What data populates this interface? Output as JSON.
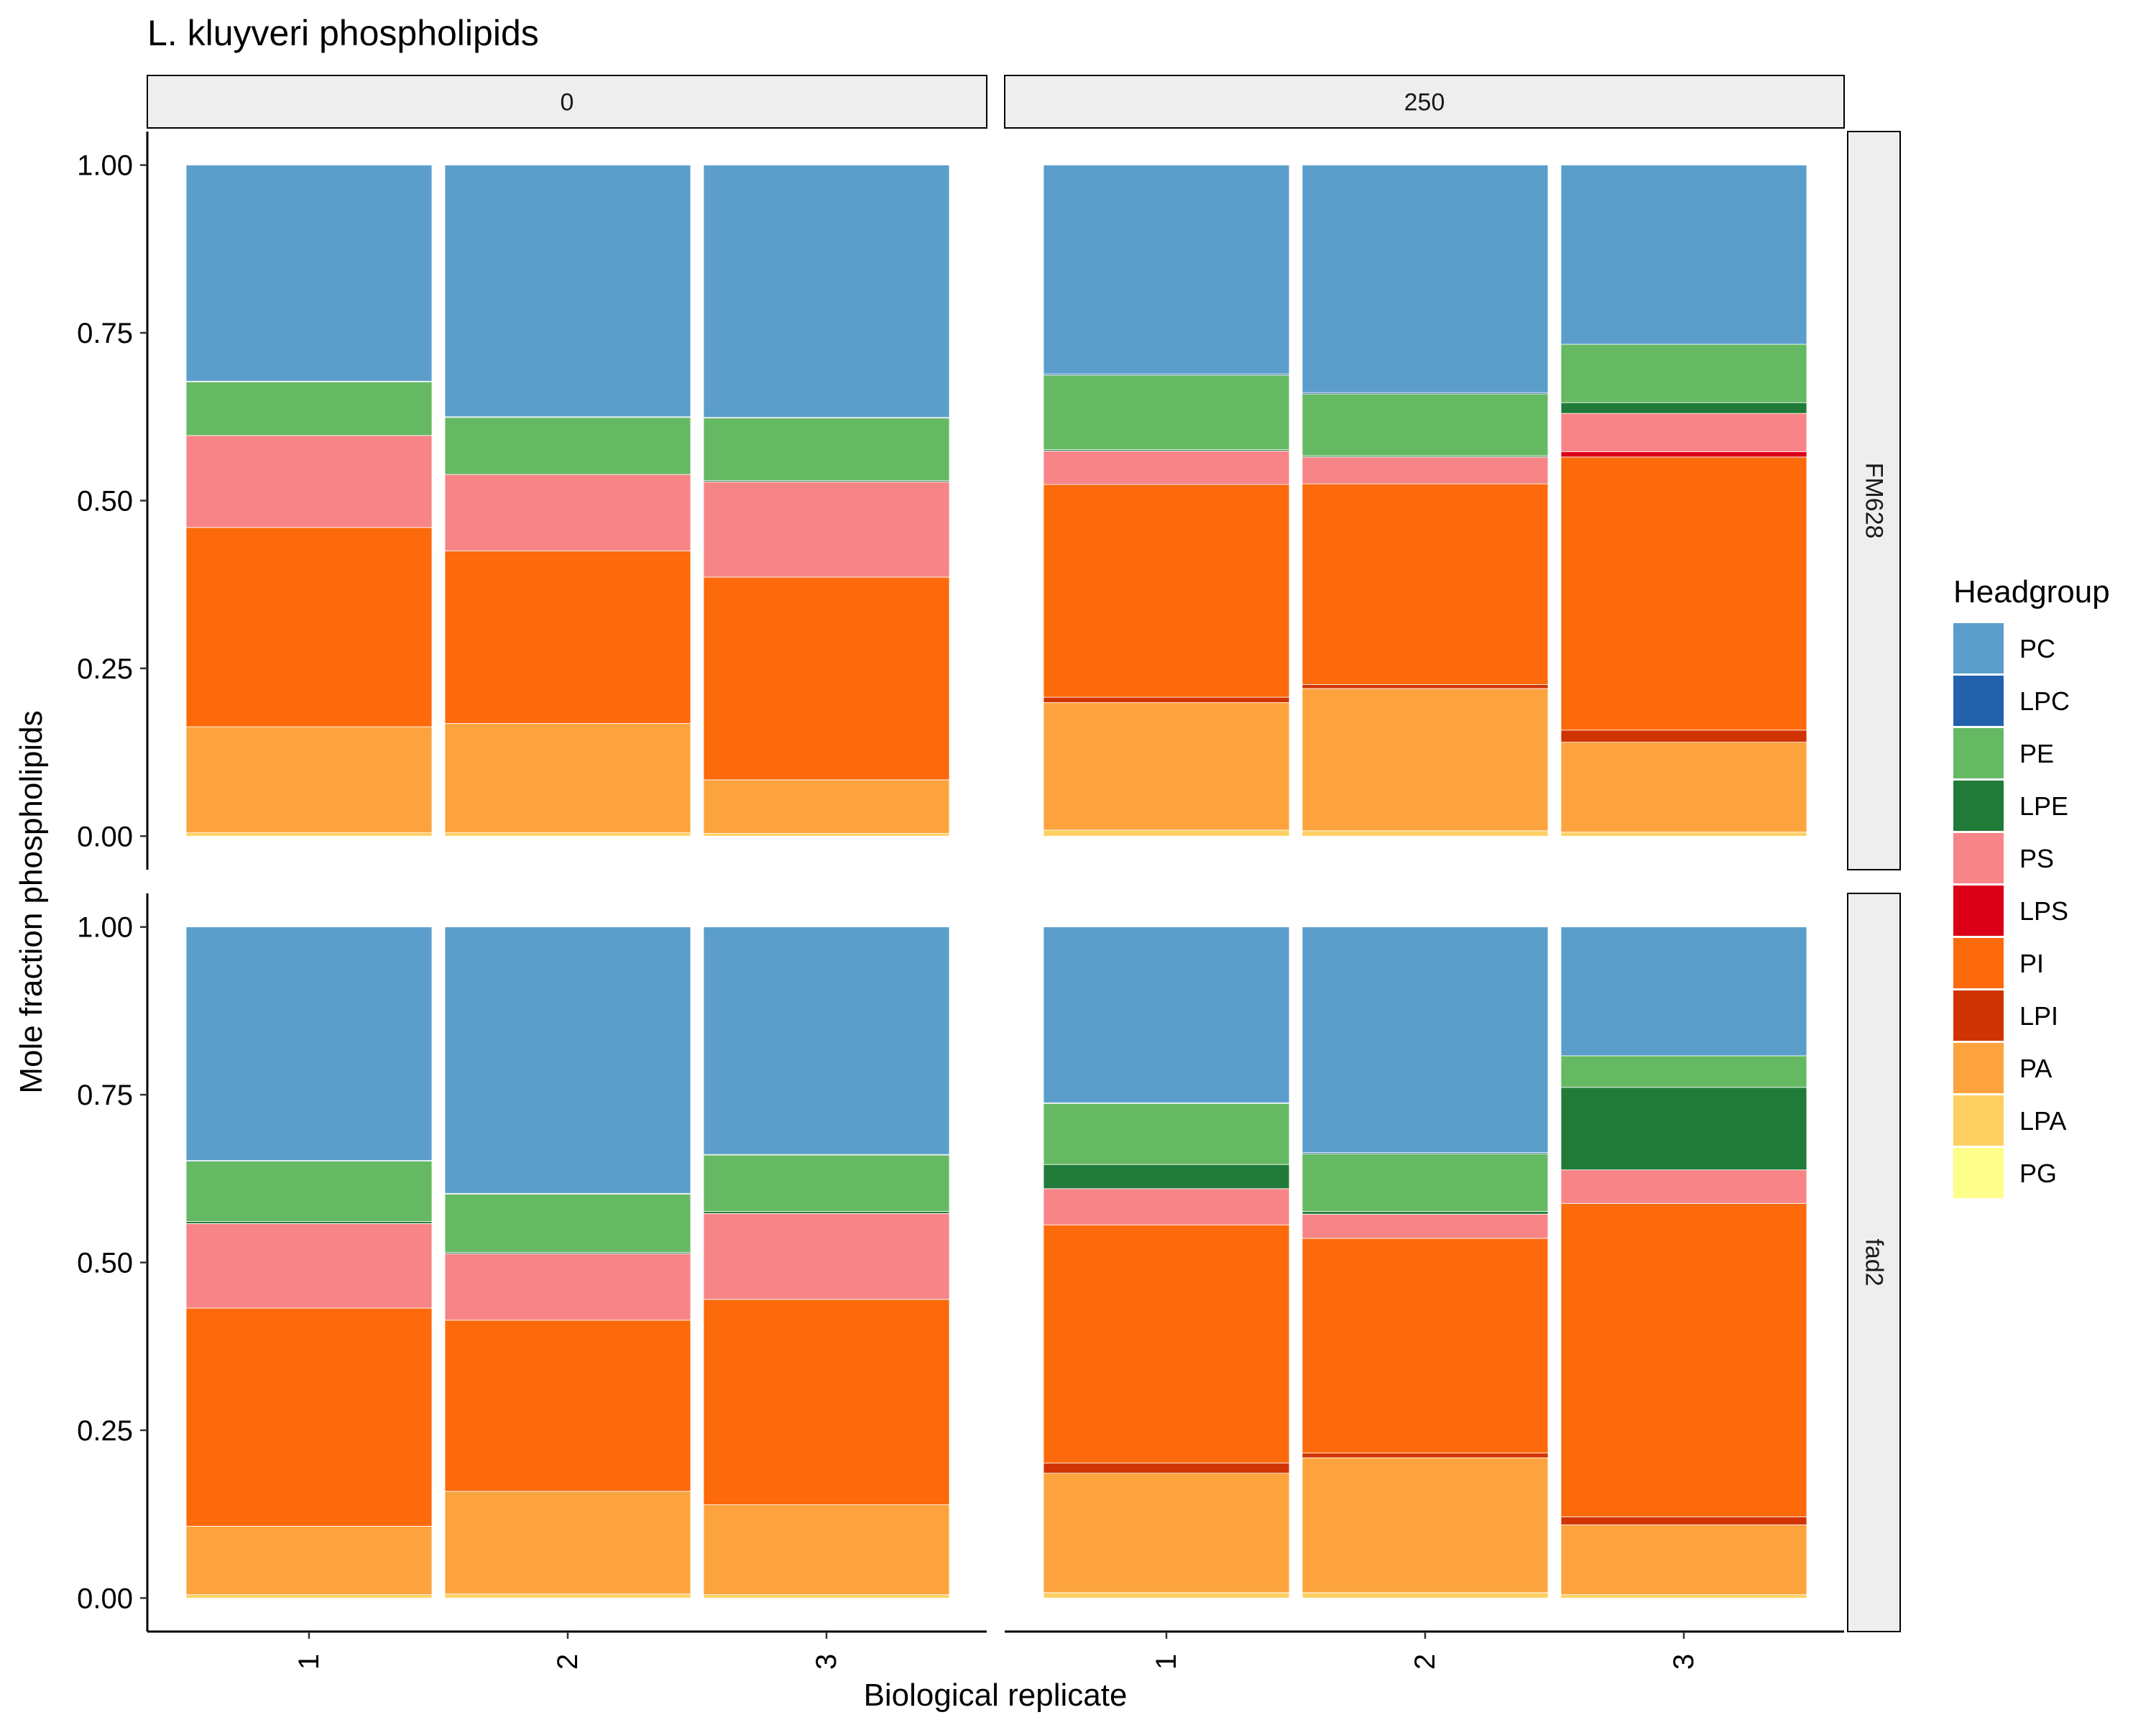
{
  "chart_data": {
    "type": "bar",
    "stacked": true,
    "title": "L. kluyveri phospholipids",
    "xlabel": "Biological replicate",
    "ylabel": "Mole fraction phospholipids",
    "ylim": [
      0,
      1
    ],
    "y_ticks": [
      "0.00",
      "0.25",
      "0.50",
      "0.75",
      "1.00"
    ],
    "x_tick_labels": [
      "1",
      "2",
      "3"
    ],
    "facet_columns": [
      "0",
      "250"
    ],
    "facet_rows": [
      "FM628",
      "fad2"
    ],
    "legend_title": "Headgroup",
    "legend_position": "right",
    "grid": false,
    "series": [
      {
        "name": "PC",
        "color": "#5b9ecb"
      },
      {
        "name": "LPC",
        "color": "#2262ad"
      },
      {
        "name": "PE",
        "color": "#66b963"
      },
      {
        "name": "LPE",
        "color": "#207b38"
      },
      {
        "name": "PS",
        "color": "#f78587"
      },
      {
        "name": "LPS",
        "color": "#db0018"
      },
      {
        "name": "PI",
        "color": "#fc6a0b"
      },
      {
        "name": "LPI",
        "color": "#d13404"
      },
      {
        "name": "PA",
        "color": "#fca33e"
      },
      {
        "name": "LPA",
        "color": "#fed061"
      },
      {
        "name": "PG",
        "color": "#fefe8b"
      }
    ],
    "stack_order_bottom_to_top": [
      "PG",
      "LPA",
      "PA",
      "LPI",
      "PI",
      "LPS",
      "PS",
      "LPE",
      "PE",
      "LPC",
      "PC"
    ],
    "panels": [
      {
        "row": "FM628",
        "col": "0",
        "bars": [
          {
            "replicate": "1",
            "values": {
              "PG": 0.0,
              "LPA": 0.005,
              "PA": 0.158,
              "LPI": 0.0,
              "PI": 0.297,
              "LPS": 0.0,
              "PS": 0.137,
              "LPE": 0.0,
              "PE": 0.08,
              "LPC": 0.001,
              "PC": 0.322
            }
          },
          {
            "replicate": "2",
            "values": {
              "PG": 0.0,
              "LPA": 0.005,
              "PA": 0.163,
              "LPI": 0.0,
              "PI": 0.257,
              "LPS": 0.0,
              "PS": 0.114,
              "LPE": 0.0,
              "PE": 0.085,
              "LPC": 0.001,
              "PC": 0.375
            }
          },
          {
            "replicate": "3",
            "values": {
              "PG": 0.0,
              "LPA": 0.004,
              "PA": 0.08,
              "LPI": 0.0,
              "PI": 0.302,
              "LPS": 0.0,
              "PS": 0.142,
              "LPE": 0.002,
              "PE": 0.093,
              "LPC": 0.001,
              "PC": 0.376
            }
          }
        ]
      },
      {
        "row": "FM628",
        "col": "250",
        "bars": [
          {
            "replicate": "1",
            "values": {
              "PG": 0.0,
              "LPA": 0.009,
              "PA": 0.19,
              "LPI": 0.008,
              "PI": 0.317,
              "LPS": 0.0,
              "PS": 0.05,
              "LPE": 0.002,
              "PE": 0.111,
              "LPC": 0.002,
              "PC": 0.311
            }
          },
          {
            "replicate": "2",
            "values": {
              "PG": 0.0,
              "LPA": 0.008,
              "PA": 0.212,
              "LPI": 0.006,
              "PI": 0.299,
              "LPS": 0.0,
              "PS": 0.04,
              "LPE": 0.002,
              "PE": 0.092,
              "LPC": 0.002,
              "PC": 0.339
            }
          },
          {
            "replicate": "3",
            "values": {
              "PG": 0.0,
              "LPA": 0.006,
              "PA": 0.134,
              "LPI": 0.018,
              "PI": 0.407,
              "LPS": 0.008,
              "PS": 0.057,
              "LPE": 0.016,
              "PE": 0.087,
              "LPC": 0.0,
              "PC": 0.267
            }
          }
        ]
      },
      {
        "row": "fad2",
        "col": "0",
        "bars": [
          {
            "replicate": "1",
            "values": {
              "PG": 0.0,
              "LPA": 0.005,
              "PA": 0.102,
              "LPI": 0.0,
              "PI": 0.325,
              "LPS": 0.0,
              "PS": 0.126,
              "LPE": 0.003,
              "PE": 0.09,
              "LPC": 0.001,
              "PC": 0.348
            }
          },
          {
            "replicate": "2",
            "values": {
              "PG": 0.0,
              "LPA": 0.006,
              "PA": 0.153,
              "LPI": 0.0,
              "PI": 0.255,
              "LPS": 0.0,
              "PS": 0.099,
              "LPE": 0.002,
              "PE": 0.087,
              "LPC": 0.001,
              "PC": 0.397
            }
          },
          {
            "replicate": "3",
            "values": {
              "PG": 0.0,
              "LPA": 0.005,
              "PA": 0.134,
              "LPI": 0.0,
              "PI": 0.306,
              "LPS": 0.0,
              "PS": 0.128,
              "LPE": 0.003,
              "PE": 0.084,
              "LPC": 0.001,
              "PC": 0.339
            }
          }
        ]
      },
      {
        "row": "fad2",
        "col": "250",
        "bars": [
          {
            "replicate": "1",
            "values": {
              "PG": 0.0,
              "LPA": 0.008,
              "PA": 0.178,
              "LPI": 0.015,
              "PI": 0.355,
              "LPS": 0.0,
              "PS": 0.054,
              "LPE": 0.036,
              "PE": 0.091,
              "LPC": 0.001,
              "PC": 0.262
            }
          },
          {
            "replicate": "2",
            "values": {
              "PG": 0.0,
              "LPA": 0.008,
              "PA": 0.201,
              "LPI": 0.007,
              "PI": 0.32,
              "LPS": 0.0,
              "PS": 0.036,
              "LPE": 0.004,
              "PE": 0.086,
              "LPC": 0.002,
              "PC": 0.336
            }
          },
          {
            "replicate": "3",
            "values": {
              "PG": 0.0,
              "LPA": 0.005,
              "PA": 0.104,
              "LPI": 0.012,
              "PI": 0.467,
              "LPS": 0.0,
              "PS": 0.05,
              "LPE": 0.123,
              "PE": 0.047,
              "LPC": 0.0,
              "PC": 0.192
            }
          }
        ]
      }
    ]
  }
}
